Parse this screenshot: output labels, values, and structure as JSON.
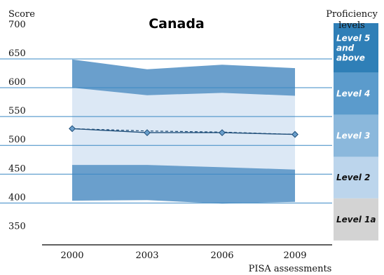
{
  "chart_data": {
    "type": "area",
    "title": "Canada",
    "ylabel": "Score",
    "xlabel": "PISA assessments",
    "ylim": [
      325,
      712
    ],
    "yticks": [
      700,
      650,
      600,
      550,
      500,
      450,
      400,
      350
    ],
    "grid_lines": [
      650,
      600,
      550,
      500,
      450,
      400
    ],
    "x": [
      "2000",
      "2003",
      "2006",
      "2009"
    ],
    "mean": [
      529,
      522,
      522,
      519
    ],
    "mean_dashed": [
      529,
      525,
      523,
      519
    ],
    "band_outer_upper": [
      649,
      632,
      640,
      634
    ],
    "band_inner_upper": [
      600,
      587,
      591,
      586
    ],
    "band_inner_lower": [
      466,
      466,
      462,
      458
    ],
    "band_outer_lower": [
      404,
      405,
      399,
      402
    ],
    "levels_title": [
      "Proficiency",
      "levels"
    ],
    "levels": [
      {
        "label": [
          "Level 5",
          "and",
          "above"
        ],
        "from": 626,
        "to": 712,
        "color": "#2f7fb7",
        "text_color": "#ffffff"
      },
      {
        "label": [
          "Level 4"
        ],
        "from": 553,
        "to": 626,
        "color": "#5b9bcc",
        "text_color": "#ffffff"
      },
      {
        "label": [
          "Level 3"
        ],
        "from": 480,
        "to": 553,
        "color": "#8bb8dc",
        "text_color": "#ffffff"
      },
      {
        "label": [
          "Level 2"
        ],
        "from": 408,
        "to": 480,
        "color": "#bcd5ec",
        "text_color": "#111111"
      },
      {
        "label": [
          "Level 1a"
        ],
        "from": 335,
        "to": 408,
        "color": "#d3d3d3",
        "text_color": "#111111"
      }
    ],
    "colors": {
      "outer_band": "#6a9fcc",
      "inner_band": "#dce8f5",
      "grid": "#3a88c4",
      "mean_line": "#1f4e79",
      "marker": "#6a9fcc"
    }
  }
}
